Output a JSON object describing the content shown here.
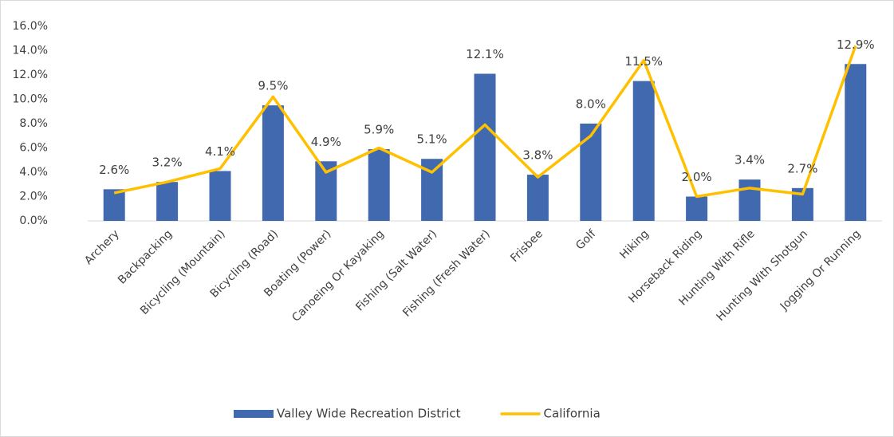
{
  "chart_data": {
    "type": "bar_line",
    "categories": [
      "Archery",
      "Backpacking",
      "Bicycling (Mountain)",
      "Bicycling (Road)",
      "Boating (Power)",
      "Canoeing Or Kayaking",
      "Fishing (Salt Water)",
      "Fishing (Fresh Water)",
      "Frisbee",
      "Golf",
      "Hiking",
      "Horseback Riding",
      "Hunting With Rifle",
      "Hunting With Shotgun",
      "Jogging Or Running"
    ],
    "series": [
      {
        "name": "Valley Wide Recreation District",
        "type": "bar",
        "color": "#4169b0",
        "values": [
          2.6,
          3.2,
          4.1,
          9.5,
          4.9,
          5.9,
          5.1,
          12.1,
          3.8,
          8.0,
          11.5,
          2.0,
          3.4,
          2.7,
          12.9
        ],
        "value_labels": [
          "2.6%",
          "3.2%",
          "4.1%",
          "9.5%",
          "4.9%",
          "5.9%",
          "5.1%",
          "12.1%",
          "3.8%",
          "8.0%",
          "11.5%",
          "2.0%",
          "3.4%",
          "2.7%",
          "12.9%"
        ]
      },
      {
        "name": "California",
        "type": "line",
        "color": "#ffc000",
        "values": [
          2.3,
          3.2,
          4.3,
          10.2,
          4.0,
          6.0,
          4.0,
          7.9,
          3.6,
          7.0,
          13.2,
          2.0,
          2.7,
          2.2,
          14.4
        ]
      }
    ],
    "ylim": [
      0,
      16
    ],
    "yticks": [
      {
        "value": 0,
        "label": "0.0%"
      },
      {
        "value": 2,
        "label": "2.0%"
      },
      {
        "value": 4,
        "label": "4.0%"
      },
      {
        "value": 6,
        "label": "6.0%"
      },
      {
        "value": 8,
        "label": "8.0%"
      },
      {
        "value": 10,
        "label": "10.0%"
      },
      {
        "value": 12,
        "label": "12.0%"
      },
      {
        "value": 14,
        "label": "14.0%"
      },
      {
        "value": 16,
        "label": "16.0%"
      }
    ],
    "legend": "bottom"
  }
}
